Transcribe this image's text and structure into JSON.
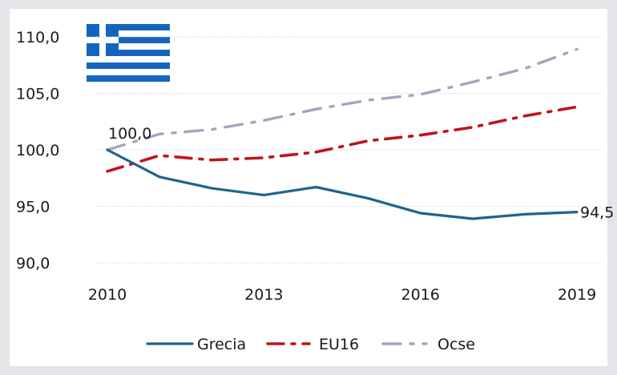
{
  "colors": {
    "background": "#e3e5e8",
    "panel": "#ffffff",
    "flag_blue": "#1565c0",
    "grid": "#d9d9d9"
  },
  "flag_icon": "greece-flag-icon",
  "chart_data": {
    "type": "line",
    "title": "",
    "xlabel": "",
    "ylabel": "",
    "x": [
      2010,
      2011,
      2012,
      2013,
      2014,
      2015,
      2016,
      2017,
      2018,
      2019
    ],
    "xticks": [
      "2010",
      "2013",
      "2016",
      "2019"
    ],
    "yticks": [
      "110,0",
      "105,0",
      "100,0",
      "95,0",
      "90,0"
    ],
    "ylim": [
      90,
      110
    ],
    "grid": true,
    "legend_position": "bottom",
    "series": [
      {
        "name": "Grecia",
        "color": "#1f6391",
        "dash": "solid",
        "values": [
          100.0,
          97.6,
          96.6,
          96.0,
          96.7,
          95.7,
          94.4,
          93.9,
          94.3,
          94.5
        ]
      },
      {
        "name": "EU16",
        "color": "#c0141c",
        "dash": "dashdot",
        "values": [
          98.1,
          99.5,
          99.1,
          99.3,
          99.8,
          100.8,
          101.3,
          102.0,
          103.0,
          103.8
        ]
      },
      {
        "name": "Ocse",
        "color": "#a6a3bf",
        "dash": "dashdot-light",
        "values": [
          100.0,
          101.4,
          101.8,
          102.6,
          103.6,
          104.4,
          104.9,
          106.0,
          107.2,
          108.9
        ]
      }
    ],
    "annotations": [
      {
        "text": "100,0",
        "series": "Grecia",
        "x": 2010
      },
      {
        "text": "94,5",
        "series": "Grecia",
        "x": 2019
      }
    ]
  }
}
